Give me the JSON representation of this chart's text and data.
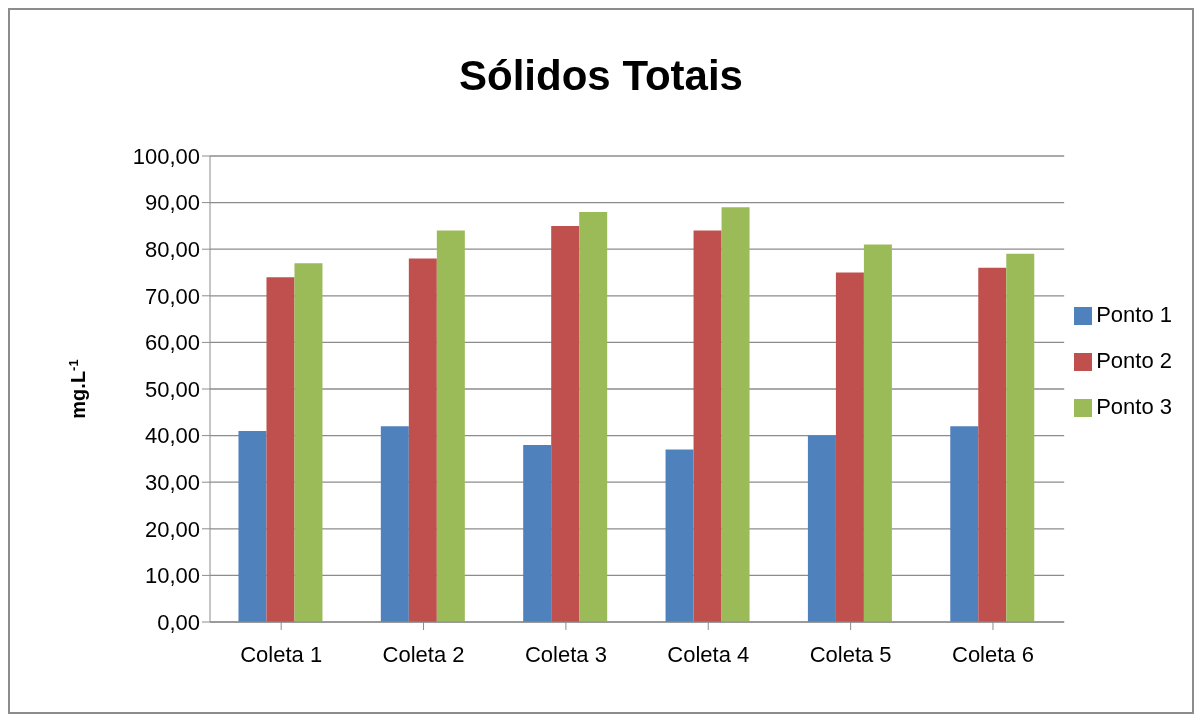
{
  "chart_data": {
    "type": "bar",
    "title": "Sólidos Totais",
    "ylabel": "mg.L$^{-1}$",
    "categories": [
      "Coleta 1",
      "Coleta 2",
      "Coleta 3",
      "Coleta 4",
      "Coleta 5",
      "Coleta 6"
    ],
    "series": [
      {
        "name": "Ponto 1",
        "color": "#4f81bd",
        "values": [
          41,
          42,
          38,
          37,
          40,
          42
        ]
      },
      {
        "name": "Ponto 2",
        "color": "#c0504d",
        "values": [
          74,
          78,
          85,
          84,
          75,
          76
        ]
      },
      {
        "name": "Ponto 3",
        "color": "#9bbb59",
        "values": [
          77,
          84,
          88,
          89,
          81,
          79
        ]
      }
    ],
    "ylim": [
      0,
      100
    ],
    "yticks": [
      {
        "value": 0,
        "label": "0,00"
      },
      {
        "value": 10,
        "label": "10,00"
      },
      {
        "value": 20,
        "label": "20,00"
      },
      {
        "value": 30,
        "label": "30,00"
      },
      {
        "value": 40,
        "label": "40,00"
      },
      {
        "value": 50,
        "label": "50,00"
      },
      {
        "value": 60,
        "label": "60,00"
      },
      {
        "value": 70,
        "label": "70,00"
      },
      {
        "value": 80,
        "label": "80,00"
      },
      {
        "value": 90,
        "label": "90,00"
      },
      {
        "value": 100,
        "label": "100,00"
      }
    ],
    "grid": "y",
    "legend": "right"
  }
}
